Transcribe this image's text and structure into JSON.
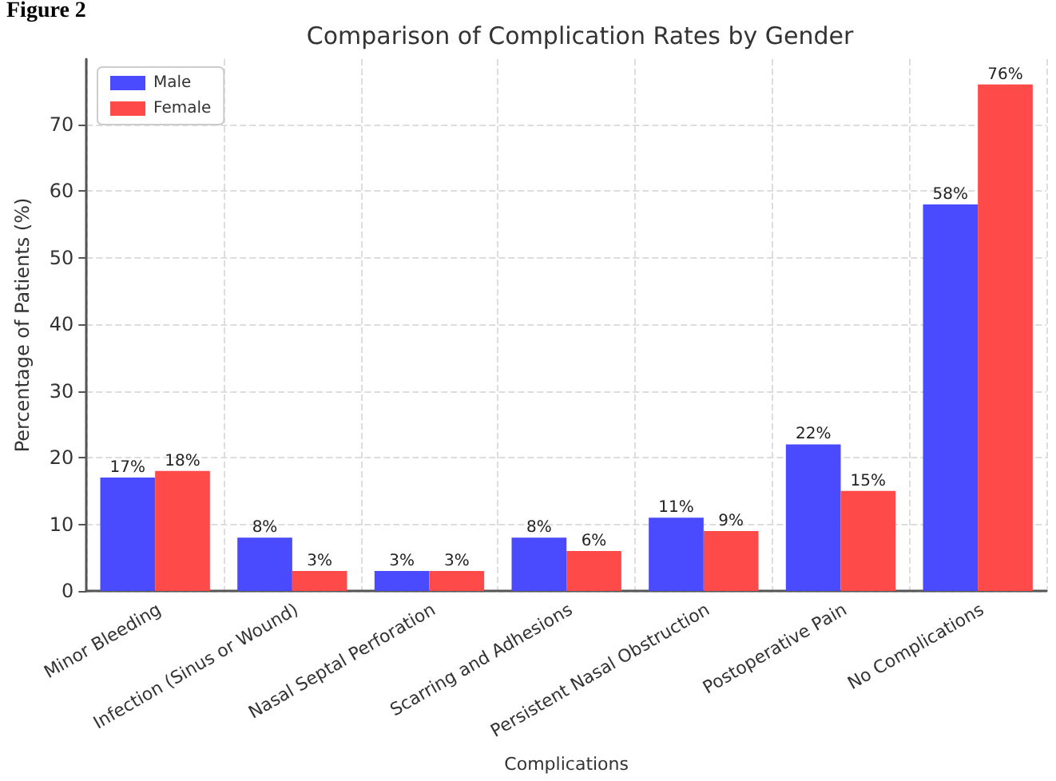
{
  "chart_data": {
    "type": "bar",
    "title": "Comparison of Complication Rates by Gender",
    "xlabel": "Complications",
    "ylabel": "Percentage of Patients (%)",
    "annotations": [
      "Figure 2"
    ],
    "categories": [
      "Minor Bleeding",
      "Infection (Sinus or Wound)",
      "Nasal Septal Perforation",
      "Scarring and Adhesions",
      "Persistent Nasal Obstruction",
      "Postoperative Pain",
      "No Complications"
    ],
    "series": [
      {
        "name": "Male",
        "color": "#4a4aff",
        "values": [
          17,
          8,
          3,
          8,
          11,
          22,
          58
        ],
        "value_labels": [
          "17%",
          "8%",
          "3%",
          "8%",
          "11%",
          "22%",
          "58%"
        ]
      },
      {
        "name": "Female",
        "color": "#ff4a4a",
        "values": [
          18,
          3,
          3,
          6,
          9,
          15,
          76
        ],
        "value_labels": [
          "18%",
          "3%",
          "3%",
          "6%",
          "9%",
          "15%",
          "76%"
        ]
      }
    ],
    "ylim": [
      0,
      79.8
    ],
    "yticks": [
      0,
      10,
      20,
      30,
      40,
      50,
      60,
      70
    ],
    "grid": true,
    "legend": "top left"
  }
}
